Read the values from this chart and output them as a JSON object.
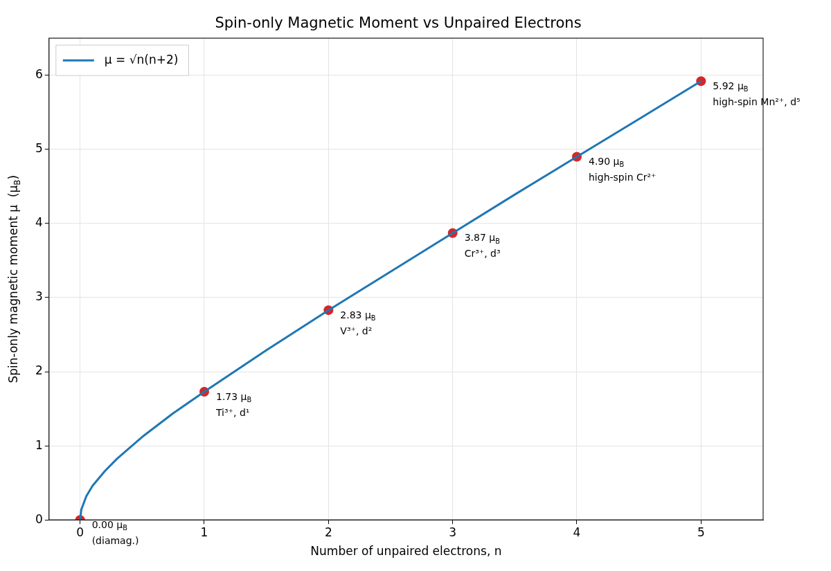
{
  "chart_data": {
    "type": "line",
    "title": "Spin-only Magnetic Moment vs Unpaired Electrons",
    "xlabel": "Number of unpaired electrons, n",
    "ylabel": "Spin-only magnetic moment μ  (μ$_{B}$)",
    "xlim": [
      -0.25,
      5.5
    ],
    "ylim": [
      0,
      6.5
    ],
    "xticks": [
      0,
      1,
      2,
      3,
      4,
      5
    ],
    "yticks": [
      0,
      1,
      2,
      3,
      4,
      5,
      6
    ],
    "grid": true,
    "legend": "top left",
    "series": [
      {
        "name": "μ = √n(n+2)",
        "color": "#1f77b4",
        "marker": "none",
        "x": [
          0,
          0.01,
          0.05,
          0.1,
          0.2,
          0.3,
          0.5,
          0.75,
          1,
          1.5,
          2,
          2.5,
          3,
          3.5,
          4,
          4.5,
          5
        ],
        "values": [
          0,
          0.14,
          0.32,
          0.46,
          0.66,
          0.83,
          1.12,
          1.44,
          1.73,
          2.29,
          2.83,
          3.35,
          3.87,
          4.39,
          4.9,
          5.41,
          5.92
        ]
      },
      {
        "type": "scatter",
        "color": "#d62728",
        "marker": "circle",
        "x": [
          0,
          1,
          2,
          3,
          4,
          5
        ],
        "values": [
          0,
          1.73,
          2.83,
          3.87,
          4.9,
          5.92
        ]
      }
    ],
    "annotations": [
      {
        "text": "0.00 μ$_{B}$\n(diamag.)",
        "x": 0,
        "y": 0
      },
      {
        "text": "1.73 μ$_{B}$\nTi³⁺, d¹",
        "x": 1,
        "y": 1.73
      },
      {
        "text": "2.83 μ$_{B}$\nV³⁺, d²",
        "x": 2,
        "y": 2.83
      },
      {
        "text": "3.87 μ$_{B}$\nCr³⁺, d³",
        "x": 3,
        "y": 3.87
      },
      {
        "text": "4.90 μ$_{B}$\nhigh-spin Cr²⁺",
        "x": 4,
        "y": 4.9
      },
      {
        "text": "5.92 μ$_{B}$\nhigh-spin Mn²⁺, d⁵",
        "x": 5,
        "y": 5.92
      }
    ]
  }
}
